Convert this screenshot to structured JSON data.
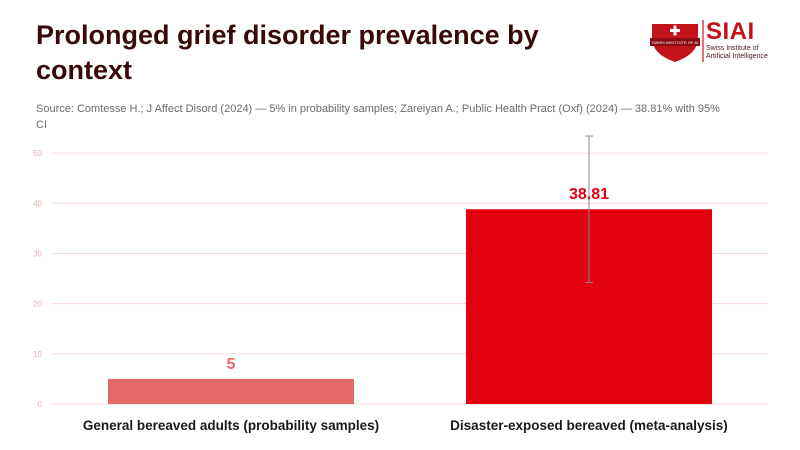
{
  "header": {
    "title": "Prolonged grief disorder prevalence by context",
    "source": "Source: Comtesse H.; J Affect Disord (2024) — 5% in probability samples; Zareiyan A.; Public Health Pract (Oxf) (2024) — 38.81% with 95% CI"
  },
  "logo": {
    "name": "SIAI",
    "subtitle": "Swiss Institute of Artificial Intelligence",
    "badge_text": "SWISS INSTITUTE OF AI"
  },
  "colors": {
    "bar_general": "#e46a6a",
    "bar_disaster": "#e3000f",
    "label_general": "#e46a6a",
    "label_disaster": "#e3000f",
    "gridline": "#f6d6d6",
    "tick": "#e0b0b0",
    "title": "#3a0a0a"
  },
  "chart_data": {
    "type": "bar",
    "title": "Prolonged grief disorder prevalence by context",
    "categories": [
      "General bereaved adults (probability samples)",
      "Disaster-exposed bereaved (meta-analysis)"
    ],
    "values": [
      5,
      38.81
    ],
    "value_labels": [
      "5",
      "38.81"
    ],
    "error_bars": [
      null,
      {
        "low": 24.2,
        "high": 53.4
      }
    ],
    "xlabel": "",
    "ylabel": "",
    "ylim": [
      0,
      55
    ],
    "yticks": [
      0,
      10,
      20,
      30,
      40,
      50
    ],
    "grid": true,
    "legend": "none"
  }
}
